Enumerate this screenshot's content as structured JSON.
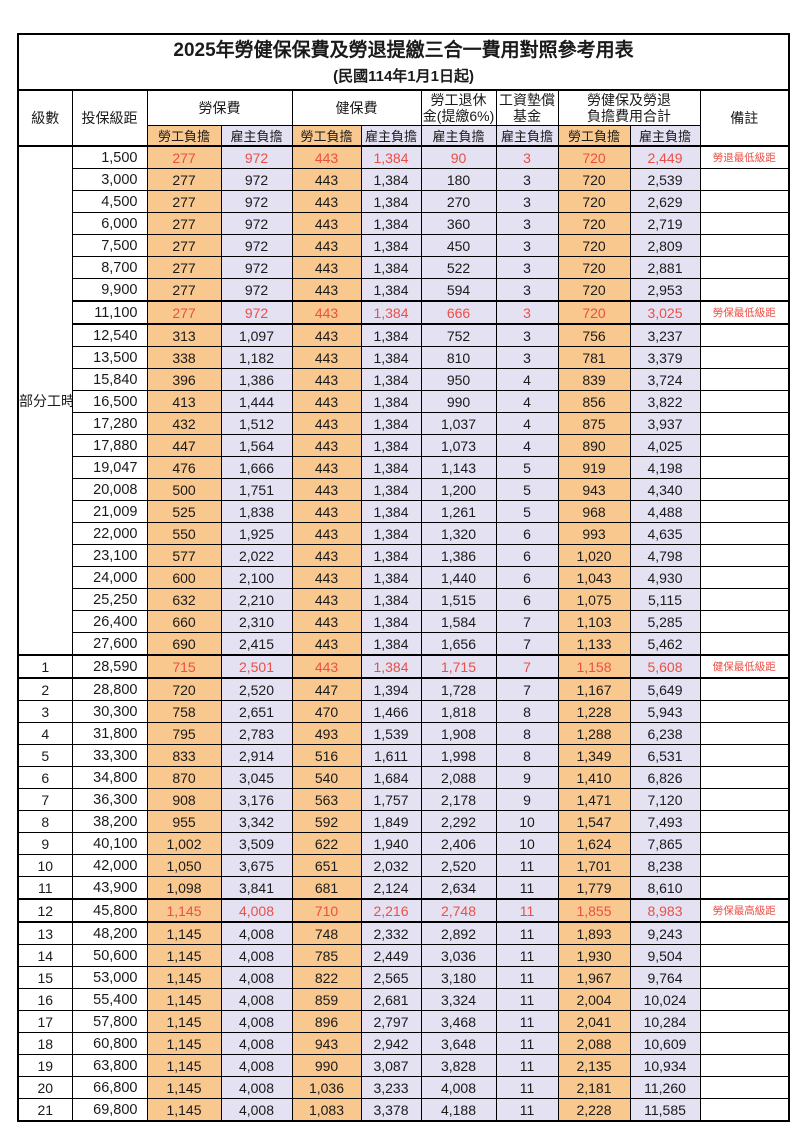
{
  "title": "2025年勞健保保費及勞退提繳三合一費用對照參考用表",
  "subtitle": "(民國114年1月1日起)",
  "colors": {
    "employee_bg": "#F9C88F",
    "employer_bg": "#E3E1F2",
    "highlight_text": "#EB4F46",
    "border": "#000000"
  },
  "header": {
    "level": "級數",
    "bracket": "投保級距",
    "labor_insurance": "勞保費",
    "health_insurance": "健保費",
    "pension_line1": "勞工退休",
    "pension_line2": "金(提繳6%)",
    "wage_fund_line1": "工資墊償",
    "wage_fund_line2": "基金",
    "total_line1": "勞健保及勞退",
    "total_line2": "負擔費用合計",
    "employee_label": "勞工負擔",
    "employer_label": "雇主負擔",
    "remarks": "備註"
  },
  "table": {
    "part_time_label": "部分工時",
    "part_time_rowspan": 23,
    "columns": [
      "勞保費-勞工負擔",
      "勞保費-雇主負擔",
      "健保費-勞工負擔",
      "健保費-雇主負擔",
      "勞工退休金(提繳6%)-雇主負擔",
      "工資墊償基金-雇主負擔",
      "合計-勞工負擔",
      "合計-雇主負擔"
    ],
    "rows": [
      {
        "level": "",
        "bracket": "1,500",
        "v": [
          "277",
          "972",
          "443",
          "1,384",
          "90",
          "3",
          "720",
          "2,449"
        ],
        "hl": true,
        "thick": false,
        "remark": "勞退最低級距"
      },
      {
        "level": "",
        "bracket": "3,000",
        "v": [
          "277",
          "972",
          "443",
          "1,384",
          "180",
          "3",
          "720",
          "2,539"
        ],
        "hl": false,
        "thick": false,
        "remark": ""
      },
      {
        "level": "",
        "bracket": "4,500",
        "v": [
          "277",
          "972",
          "443",
          "1,384",
          "270",
          "3",
          "720",
          "2,629"
        ],
        "hl": false,
        "thick": false,
        "remark": ""
      },
      {
        "level": "",
        "bracket": "6,000",
        "v": [
          "277",
          "972",
          "443",
          "1,384",
          "360",
          "3",
          "720",
          "2,719"
        ],
        "hl": false,
        "thick": false,
        "remark": ""
      },
      {
        "level": "",
        "bracket": "7,500",
        "v": [
          "277",
          "972",
          "443",
          "1,384",
          "450",
          "3",
          "720",
          "2,809"
        ],
        "hl": false,
        "thick": false,
        "remark": ""
      },
      {
        "level": "",
        "bracket": "8,700",
        "v": [
          "277",
          "972",
          "443",
          "1,384",
          "522",
          "3",
          "720",
          "2,881"
        ],
        "hl": false,
        "thick": false,
        "remark": ""
      },
      {
        "level": "",
        "bracket": "9,900",
        "v": [
          "277",
          "972",
          "443",
          "1,384",
          "594",
          "3",
          "720",
          "2,953"
        ],
        "hl": false,
        "thick": false,
        "remark": ""
      },
      {
        "level": "",
        "bracket": "11,100",
        "v": [
          "277",
          "972",
          "443",
          "1,384",
          "666",
          "3",
          "720",
          "3,025"
        ],
        "hl": true,
        "thick": true,
        "remark": "勞保最低級距"
      },
      {
        "level": "",
        "bracket": "12,540",
        "v": [
          "313",
          "1,097",
          "443",
          "1,384",
          "752",
          "3",
          "756",
          "3,237"
        ],
        "hl": false,
        "thick": false,
        "remark": ""
      },
      {
        "level": "",
        "bracket": "13,500",
        "v": [
          "338",
          "1,182",
          "443",
          "1,384",
          "810",
          "3",
          "781",
          "3,379"
        ],
        "hl": false,
        "thick": false,
        "remark": ""
      },
      {
        "level": "",
        "bracket": "15,840",
        "v": [
          "396",
          "1,386",
          "443",
          "1,384",
          "950",
          "4",
          "839",
          "3,724"
        ],
        "hl": false,
        "thick": false,
        "remark": ""
      },
      {
        "level": "",
        "bracket": "16,500",
        "v": [
          "413",
          "1,444",
          "443",
          "1,384",
          "990",
          "4",
          "856",
          "3,822"
        ],
        "hl": false,
        "thick": false,
        "remark": ""
      },
      {
        "level": "",
        "bracket": "17,280",
        "v": [
          "432",
          "1,512",
          "443",
          "1,384",
          "1,037",
          "4",
          "875",
          "3,937"
        ],
        "hl": false,
        "thick": false,
        "remark": ""
      },
      {
        "level": "",
        "bracket": "17,880",
        "v": [
          "447",
          "1,564",
          "443",
          "1,384",
          "1,073",
          "4",
          "890",
          "4,025"
        ],
        "hl": false,
        "thick": false,
        "remark": ""
      },
      {
        "level": "",
        "bracket": "19,047",
        "v": [
          "476",
          "1,666",
          "443",
          "1,384",
          "1,143",
          "5",
          "919",
          "4,198"
        ],
        "hl": false,
        "thick": false,
        "remark": ""
      },
      {
        "level": "",
        "bracket": "20,008",
        "v": [
          "500",
          "1,751",
          "443",
          "1,384",
          "1,200",
          "5",
          "943",
          "4,340"
        ],
        "hl": false,
        "thick": false,
        "remark": ""
      },
      {
        "level": "",
        "bracket": "21,009",
        "v": [
          "525",
          "1,838",
          "443",
          "1,384",
          "1,261",
          "5",
          "968",
          "4,488"
        ],
        "hl": false,
        "thick": false,
        "remark": ""
      },
      {
        "level": "",
        "bracket": "22,000",
        "v": [
          "550",
          "1,925",
          "443",
          "1,384",
          "1,320",
          "6",
          "993",
          "4,635"
        ],
        "hl": false,
        "thick": false,
        "remark": ""
      },
      {
        "level": "",
        "bracket": "23,100",
        "v": [
          "577",
          "2,022",
          "443",
          "1,384",
          "1,386",
          "6",
          "1,020",
          "4,798"
        ],
        "hl": false,
        "thick": false,
        "remark": ""
      },
      {
        "level": "",
        "bracket": "24,000",
        "v": [
          "600",
          "2,100",
          "443",
          "1,384",
          "1,440",
          "6",
          "1,043",
          "4,930"
        ],
        "hl": false,
        "thick": false,
        "remark": ""
      },
      {
        "level": "",
        "bracket": "25,250",
        "v": [
          "632",
          "2,210",
          "443",
          "1,384",
          "1,515",
          "6",
          "1,075",
          "5,115"
        ],
        "hl": false,
        "thick": false,
        "remark": ""
      },
      {
        "level": "",
        "bracket": "26,400",
        "v": [
          "660",
          "2,310",
          "443",
          "1,384",
          "1,584",
          "7",
          "1,103",
          "5,285"
        ],
        "hl": false,
        "thick": false,
        "remark": ""
      },
      {
        "level": "",
        "bracket": "27,600",
        "v": [
          "690",
          "2,415",
          "443",
          "1,384",
          "1,656",
          "7",
          "1,133",
          "5,462"
        ],
        "hl": false,
        "thick": false,
        "remark": ""
      },
      {
        "level": "1",
        "bracket": "28,590",
        "v": [
          "715",
          "2,501",
          "443",
          "1,384",
          "1,715",
          "7",
          "1,158",
          "5,608"
        ],
        "hl": true,
        "thick": true,
        "remark": "健保最低級距"
      },
      {
        "level": "2",
        "bracket": "28,800",
        "v": [
          "720",
          "2,520",
          "447",
          "1,394",
          "1,728",
          "7",
          "1,167",
          "5,649"
        ],
        "hl": false,
        "thick": false,
        "remark": ""
      },
      {
        "level": "3",
        "bracket": "30,300",
        "v": [
          "758",
          "2,651",
          "470",
          "1,466",
          "1,818",
          "8",
          "1,228",
          "5,943"
        ],
        "hl": false,
        "thick": false,
        "remark": ""
      },
      {
        "level": "4",
        "bracket": "31,800",
        "v": [
          "795",
          "2,783",
          "493",
          "1,539",
          "1,908",
          "8",
          "1,288",
          "6,238"
        ],
        "hl": false,
        "thick": false,
        "remark": ""
      },
      {
        "level": "5",
        "bracket": "33,300",
        "v": [
          "833",
          "2,914",
          "516",
          "1,611",
          "1,998",
          "8",
          "1,349",
          "6,531"
        ],
        "hl": false,
        "thick": false,
        "remark": ""
      },
      {
        "level": "6",
        "bracket": "34,800",
        "v": [
          "870",
          "3,045",
          "540",
          "1,684",
          "2,088",
          "9",
          "1,410",
          "6,826"
        ],
        "hl": false,
        "thick": false,
        "remark": ""
      },
      {
        "level": "7",
        "bracket": "36,300",
        "v": [
          "908",
          "3,176",
          "563",
          "1,757",
          "2,178",
          "9",
          "1,471",
          "7,120"
        ],
        "hl": false,
        "thick": false,
        "remark": ""
      },
      {
        "level": "8",
        "bracket": "38,200",
        "v": [
          "955",
          "3,342",
          "592",
          "1,849",
          "2,292",
          "10",
          "1,547",
          "7,493"
        ],
        "hl": false,
        "thick": false,
        "remark": ""
      },
      {
        "level": "9",
        "bracket": "40,100",
        "v": [
          "1,002",
          "3,509",
          "622",
          "1,940",
          "2,406",
          "10",
          "1,624",
          "7,865"
        ],
        "hl": false,
        "thick": false,
        "remark": ""
      },
      {
        "level": "10",
        "bracket": "42,000",
        "v": [
          "1,050",
          "3,675",
          "651",
          "2,032",
          "2,520",
          "11",
          "1,701",
          "8,238"
        ],
        "hl": false,
        "thick": false,
        "remark": ""
      },
      {
        "level": "11",
        "bracket": "43,900",
        "v": [
          "1,098",
          "3,841",
          "681",
          "2,124",
          "2,634",
          "11",
          "1,779",
          "8,610"
        ],
        "hl": false,
        "thick": false,
        "remark": ""
      },
      {
        "level": "12",
        "bracket": "45,800",
        "v": [
          "1,145",
          "4,008",
          "710",
          "2,216",
          "2,748",
          "11",
          "1,855",
          "8,983"
        ],
        "hl": true,
        "thick": true,
        "remark": "勞保最高級距"
      },
      {
        "level": "13",
        "bracket": "48,200",
        "v": [
          "1,145",
          "4,008",
          "748",
          "2,332",
          "2,892",
          "11",
          "1,893",
          "9,243"
        ],
        "hl": false,
        "thick": false,
        "remark": ""
      },
      {
        "level": "14",
        "bracket": "50,600",
        "v": [
          "1,145",
          "4,008",
          "785",
          "2,449",
          "3,036",
          "11",
          "1,930",
          "9,504"
        ],
        "hl": false,
        "thick": false,
        "remark": ""
      },
      {
        "level": "15",
        "bracket": "53,000",
        "v": [
          "1,145",
          "4,008",
          "822",
          "2,565",
          "3,180",
          "11",
          "1,967",
          "9,764"
        ],
        "hl": false,
        "thick": false,
        "remark": ""
      },
      {
        "level": "16",
        "bracket": "55,400",
        "v": [
          "1,145",
          "4,008",
          "859",
          "2,681",
          "3,324",
          "11",
          "2,004",
          "10,024"
        ],
        "hl": false,
        "thick": false,
        "remark": ""
      },
      {
        "level": "17",
        "bracket": "57,800",
        "v": [
          "1,145",
          "4,008",
          "896",
          "2,797",
          "3,468",
          "11",
          "2,041",
          "10,284"
        ],
        "hl": false,
        "thick": false,
        "remark": ""
      },
      {
        "level": "18",
        "bracket": "60,800",
        "v": [
          "1,145",
          "4,008",
          "943",
          "2,942",
          "3,648",
          "11",
          "2,088",
          "10,609"
        ],
        "hl": false,
        "thick": false,
        "remark": ""
      },
      {
        "level": "19",
        "bracket": "63,800",
        "v": [
          "1,145",
          "4,008",
          "990",
          "3,087",
          "3,828",
          "11",
          "2,135",
          "10,934"
        ],
        "hl": false,
        "thick": false,
        "remark": ""
      },
      {
        "level": "20",
        "bracket": "66,800",
        "v": [
          "1,145",
          "4,008",
          "1,036",
          "3,233",
          "4,008",
          "11",
          "2,181",
          "11,260"
        ],
        "hl": false,
        "thick": false,
        "remark": ""
      },
      {
        "level": "21",
        "bracket": "69,800",
        "v": [
          "1,145",
          "4,008",
          "1,083",
          "3,378",
          "4,188",
          "11",
          "2,228",
          "11,585"
        ],
        "hl": false,
        "thick": false,
        "remark": ""
      }
    ]
  }
}
